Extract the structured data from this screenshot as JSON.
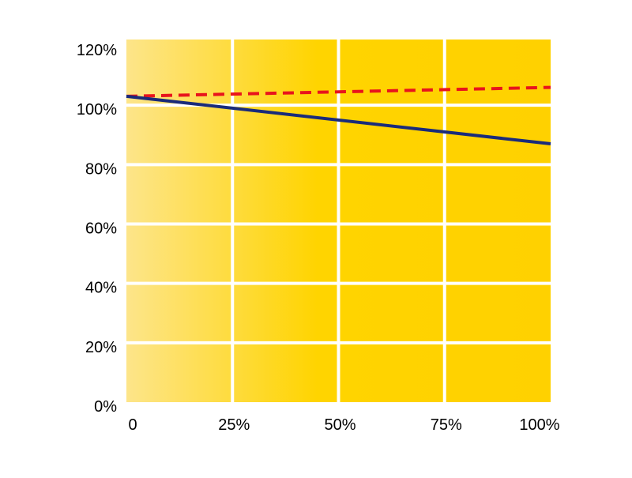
{
  "chart_data": {
    "type": "line",
    "x": [
      0,
      25,
      50,
      75,
      100
    ],
    "x_tick_labels": [
      "0",
      "25%",
      "50%",
      "75%",
      "100%"
    ],
    "y_tick_labels": [
      "0%",
      "20%",
      "40%",
      "60%",
      "80%",
      "100%",
      "120%"
    ],
    "xlim": [
      0,
      100
    ],
    "ylim": [
      0,
      120
    ],
    "grid": true,
    "series": [
      {
        "values": [
          103,
          106
        ],
        "x": [
          0,
          100
        ],
        "color": "#e8141c",
        "style": "dashed"
      },
      {
        "values": [
          103,
          87
        ],
        "x": [
          0,
          100
        ],
        "color": "#1a2b7a",
        "style": "solid"
      }
    ]
  },
  "colors": {
    "plot_background_left": "#fde58a",
    "plot_background_right": "#ffd100",
    "grid": "#ffffff"
  }
}
